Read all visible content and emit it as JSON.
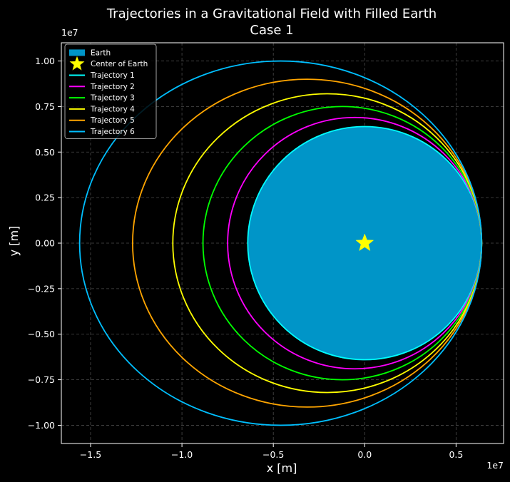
{
  "chart_data": {
    "type": "line",
    "title": "Trajectories in a Gravitational Field with Filled Earth",
    "subtitle": "Case 1",
    "xlabel": "x [m]",
    "ylabel": "y [m]",
    "x_offset_label": "1e7",
    "y_offset_label": "1e7",
    "xlim": [
      -1.66,
      0.76
    ],
    "ylim": [
      -1.1,
      1.1
    ],
    "xticks": [
      -1.5,
      -1.0,
      -0.5,
      0.0,
      0.5
    ],
    "xtick_labels": [
      "−1.5",
      "−1.0",
      "−0.5",
      "0.0",
      "0.5"
    ],
    "yticks": [
      -1.0,
      -0.75,
      -0.5,
      -0.25,
      0.0,
      0.25,
      0.5,
      0.75,
      1.0
    ],
    "ytick_labels": [
      "−1.00",
      "−0.75",
      "−0.50",
      "−0.25",
      "0.00",
      "0.25",
      "0.50",
      "0.75",
      "1.00"
    ],
    "grid": true,
    "legend_position": "top-left",
    "units_note": "axis values are in units of 1e7 m",
    "earth": {
      "label": "Earth",
      "center": [
        0,
        0
      ],
      "radius": 0.64,
      "fill_color": "#0095c8",
      "edge_color": "#00ffff"
    },
    "center_marker": {
      "label": "Center of Earth",
      "x": 0,
      "y": 0,
      "color": "#ffff00",
      "marker": "star"
    },
    "series": [
      {
        "name": "Trajectory 1",
        "color": "#00ffff",
        "x_min": -0.64,
        "x_max": 0.64,
        "y_max": 0.64
      },
      {
        "name": "Trajectory 2",
        "color": "#ff00ff",
        "x_min": -0.75,
        "x_max": 0.64,
        "y_max": 0.69
      },
      {
        "name": "Trajectory 3",
        "color": "#00ff00",
        "x_min": -0.885,
        "x_max": 0.64,
        "y_max": 0.75
      },
      {
        "name": "Trajectory 4",
        "color": "#ffff00",
        "x_min": -1.05,
        "x_max": 0.64,
        "y_max": 0.82
      },
      {
        "name": "Trajectory 5",
        "color": "#ffa500",
        "x_min": -1.27,
        "x_max": 0.64,
        "y_max": 0.9
      },
      {
        "name": "Trajectory 6",
        "color": "#00bfff",
        "x_min": -1.56,
        "x_max": 0.64,
        "y_max": 1.0
      }
    ]
  }
}
